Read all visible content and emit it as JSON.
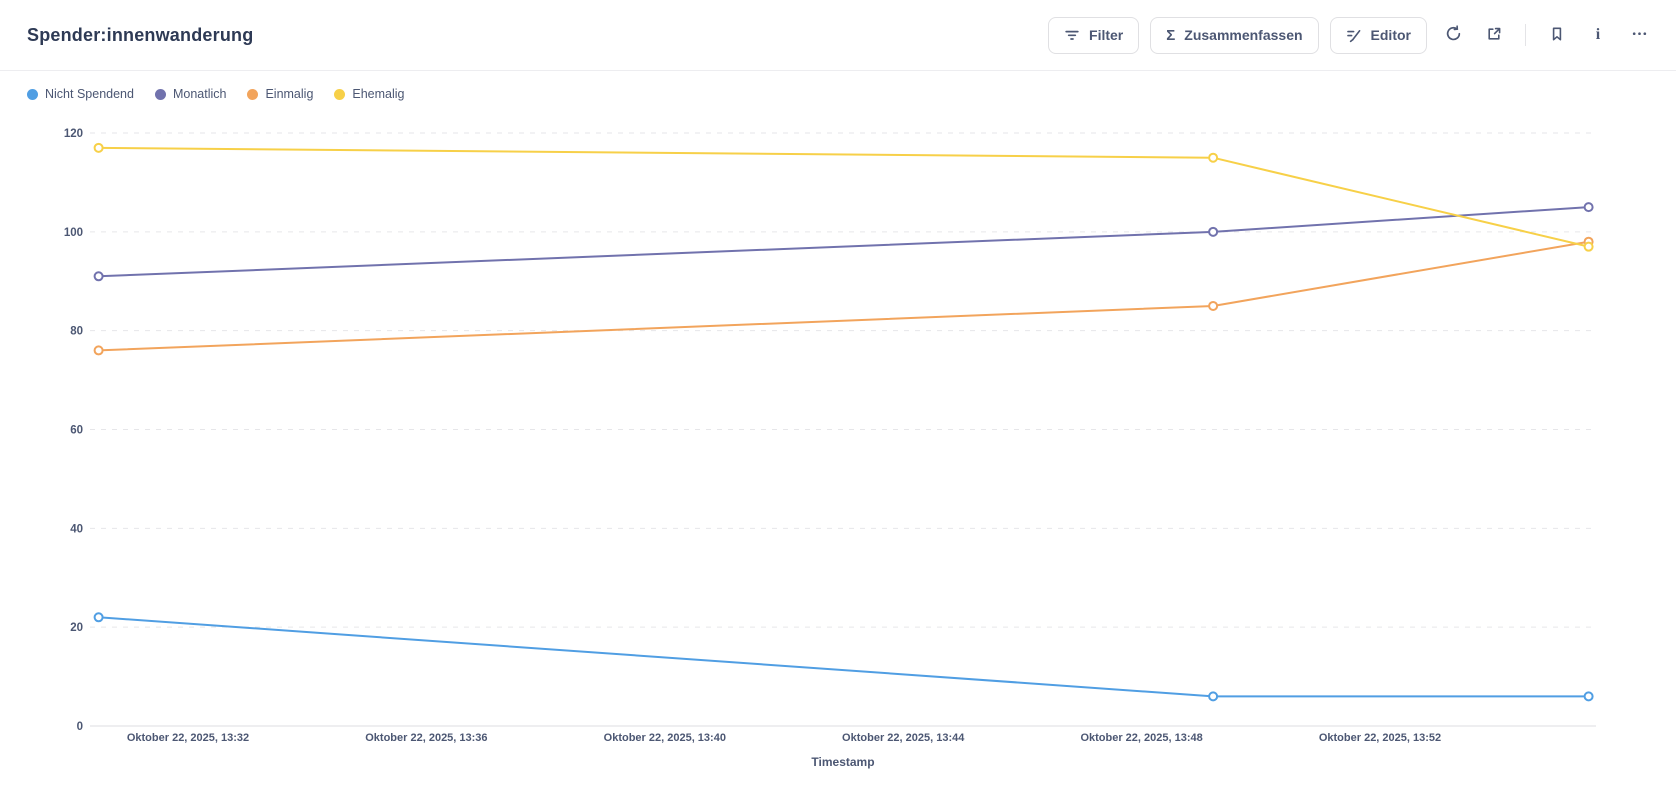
{
  "header": {
    "title": "Spender:innenwanderung",
    "buttons": [
      {
        "label": "Filter",
        "icon": "filter-icon"
      },
      {
        "label": "Zusammenfassen",
        "icon": "sigma-icon"
      },
      {
        "label": "Editor",
        "icon": "pencil-lines-icon"
      }
    ],
    "icon_buttons": [
      {
        "icon": "refresh-icon"
      },
      {
        "icon": "share-icon"
      },
      {
        "icon": "bookmark-icon"
      },
      {
        "icon": "info-icon"
      },
      {
        "icon": "ellipsis-icon"
      }
    ]
  },
  "chart_data": {
    "type": "line",
    "title": "Spender:innenwanderung",
    "xlabel": "Timestamp",
    "ylabel": "",
    "ylim": [
      0,
      120
    ],
    "y_ticks": [
      0,
      20,
      40,
      60,
      80,
      100,
      120
    ],
    "x_tick_labels": [
      "Oktober 22, 2025, 13:32",
      "Oktober 22, 2025, 13:36",
      "Oktober 22, 2025, 13:40",
      "Oktober 22, 2025, 13:44",
      "Oktober 22, 2025, 13:48",
      "Oktober 22, 2025, 13:52"
    ],
    "x_tick_interval_minutes": 4,
    "x_minutes_after_13_32": [
      -1.5,
      17.2,
      23.5
    ],
    "x_estimated_times": [
      "Oktober 22, 2025, ~13:30",
      "Oktober 22, 2025, ~13:49",
      "Oktober 22, 2025, ~13:55"
    ],
    "grid": "horizontal-dashed",
    "legend_position": "top-left",
    "series": [
      {
        "name": "Nicht Spendend",
        "color": "#509EE3",
        "values": [
          22,
          6,
          6
        ]
      },
      {
        "name": "Monatlich",
        "color": "#7172AD",
        "values": [
          91,
          100,
          105
        ]
      },
      {
        "name": "Einmalig",
        "color": "#F2A45C",
        "values": [
          76,
          85,
          98
        ]
      },
      {
        "name": "Ehemalig",
        "color": "#F7D048",
        "values": [
          117,
          115,
          97
        ]
      }
    ],
    "colors": {
      "axis_text": "#4c5773",
      "gridline": "#e6e6e9",
      "zero_line": "#dedee2"
    }
  }
}
